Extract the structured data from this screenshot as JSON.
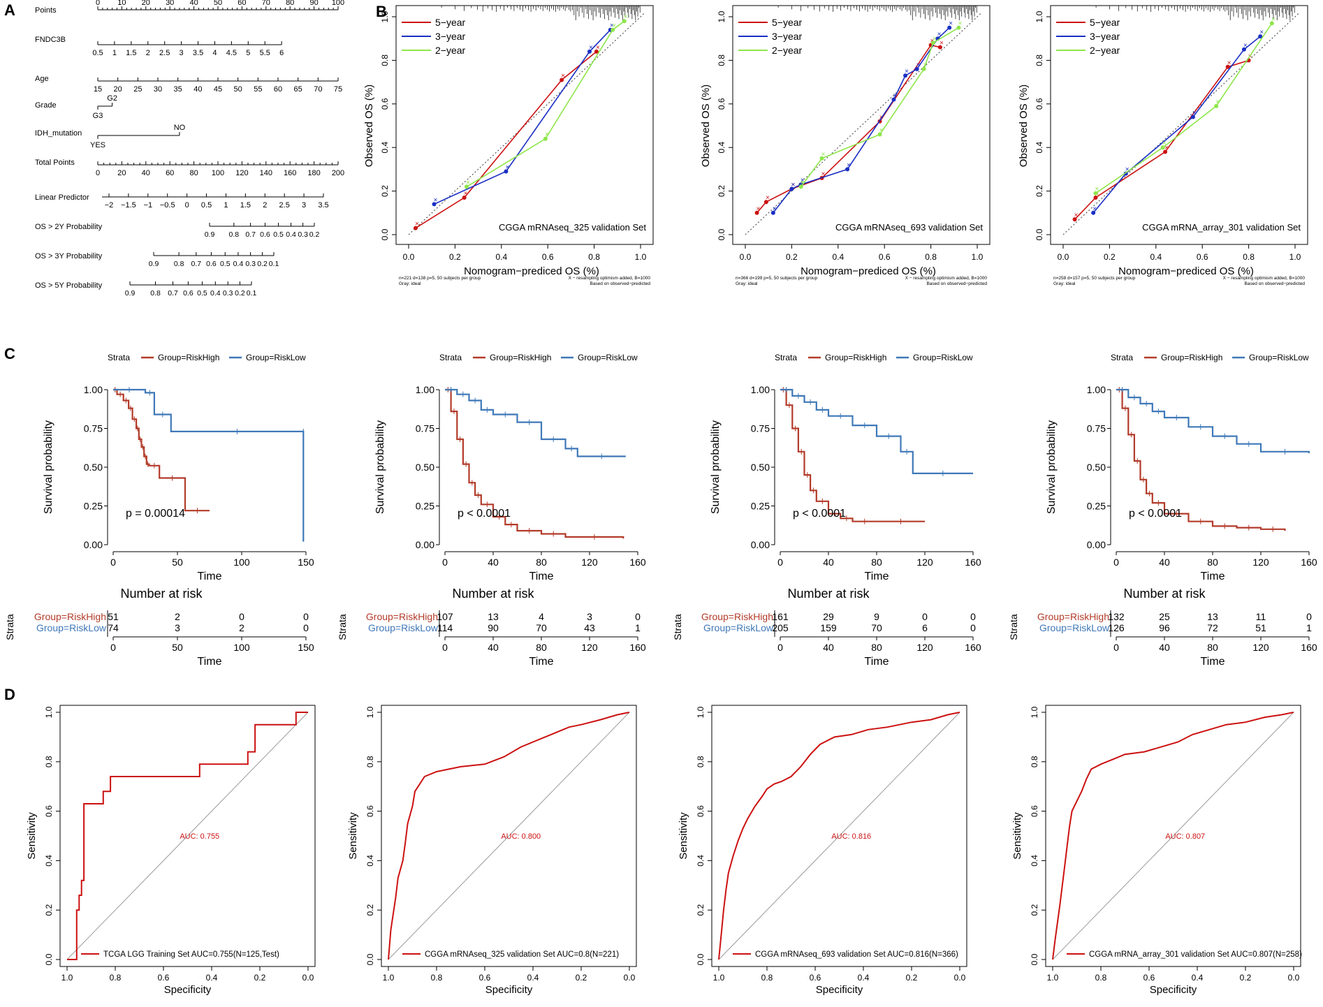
{
  "colors": {
    "red": "#cc1111",
    "blue": "#1a2fc4",
    "green": "#8ee64a",
    "riskHigh": "#b33b2a",
    "riskLow": "#3f78b8",
    "roc": "#cc1111",
    "gray": "#9a9a9a"
  },
  "panels": {
    "A": "A",
    "B": "B",
    "C": "C",
    "D": "D"
  },
  "chart_data": [
    {
      "id": "nomogram",
      "type": "nomogram",
      "rows": [
        {
          "label": "Points",
          "ticks": [
            "0",
            "10",
            "20",
            "30",
            "40",
            "50",
            "60",
            "70",
            "80",
            "90",
            "100"
          ],
          "range": [
            0,
            100
          ]
        },
        {
          "label": "FNDC3B",
          "ticks": [
            "0.5",
            "1",
            "1.5",
            "2",
            "2.5",
            "3",
            "3.5",
            "4",
            "4.5",
            "5",
            "5.5",
            "6"
          ],
          "points": [
            0,
            76.5
          ]
        },
        {
          "label": "Age",
          "ticks": [
            "15",
            "20",
            "25",
            "30",
            "35",
            "40",
            "45",
            "50",
            "55",
            "60",
            "65",
            "70",
            "75"
          ],
          "points": [
            0,
            100
          ]
        },
        {
          "label": "Grade",
          "levels": [
            "G2",
            "G3"
          ],
          "points": [
            6,
            0
          ]
        },
        {
          "label": "IDH_mutation",
          "levels": [
            "NO",
            "YES"
          ],
          "points": [
            34,
            0
          ]
        },
        {
          "label": "Total Points",
          "ticks": [
            "0",
            "20",
            "40",
            "60",
            "80",
            "100",
            "120",
            "140",
            "160",
            "180",
            "200"
          ],
          "range": [
            0,
            200
          ]
        },
        {
          "label": "Linear Predictor",
          "ticks": [
            "−2",
            "−1.5",
            "−1",
            "−0.5",
            "0",
            "0.5",
            "1",
            "1.5",
            "2",
            "2.5",
            "3",
            "3.5"
          ],
          "range": [
            -2,
            3.5
          ]
        },
        {
          "label": "OS > 2Y Probability",
          "ticks": [
            "0.9",
            "0.8",
            "0.7",
            "0.6",
            "0.5",
            "0.4",
            "0.3",
            "0.2"
          ]
        },
        {
          "label": "OS > 3Y Probability",
          "ticks": [
            "0.9",
            "0.8",
            "0.7",
            "0.6",
            "0.5",
            "0.4",
            "0.3",
            "0.2",
            "0.1"
          ]
        },
        {
          "label": "OS > 5Y Probability",
          "ticks": [
            "0.9",
            "0.8",
            "0.7",
            "0.6",
            "0.5",
            "0.4",
            "0.3",
            "0.2",
            "0.1"
          ]
        }
      ]
    },
    {
      "id": "calib1",
      "type": "line",
      "title": "CGGA mRNAseq_325 validation Set",
      "xlabel": "Nomogram−prediced OS (%)",
      "ylabel": "Observed OS (%)",
      "xlim": [
        0,
        1
      ],
      "ylim": [
        0,
        1
      ],
      "ticks": [
        "0.0",
        "0.2",
        "0.4",
        "0.6",
        "0.8",
        "1.0"
      ],
      "legend": [
        "5−year",
        "3−year",
        "2−year"
      ],
      "note_left": [
        "n=221 d=138 p=5, 50 subjects per group",
        "Gray: ideal"
      ],
      "note_right": [
        "X − resampling optimism added, B=1000",
        "Based on observed−predicted"
      ],
      "series": [
        {
          "name": "5-year",
          "x": [
            0.03,
            0.24,
            0.66,
            0.81
          ],
          "y": [
            0.03,
            0.17,
            0.71,
            0.84
          ]
        },
        {
          "name": "3-year",
          "x": [
            0.11,
            0.42,
            0.78,
            0.87
          ],
          "y": [
            0.14,
            0.29,
            0.84,
            0.94
          ]
        },
        {
          "name": "2-year",
          "x": [
            0.25,
            0.59,
            0.88,
            0.93
          ],
          "y": [
            0.22,
            0.44,
            0.94,
            0.98
          ]
        }
      ]
    },
    {
      "id": "calib2",
      "type": "line",
      "title": "CGGA mRNAseq_693 validation Set",
      "xlabel": "Nomogram−prediced OS (%)",
      "ylabel": "Observed OS (%)",
      "xlim": [
        0,
        1
      ],
      "ylim": [
        0,
        1
      ],
      "ticks": [
        "0.0",
        "0.2",
        "0.4",
        "0.6",
        "0.8",
        "1.0"
      ],
      "legend": [
        "5−year",
        "3−year",
        "2−year"
      ],
      "note_left": [
        "n=366 d=199 p=5, 50 subjects per group",
        "Gray: ideal"
      ],
      "note_right": [
        "X − resampling optimism added, B=1000",
        "Based on observed−predicted"
      ],
      "series": [
        {
          "name": "5-year",
          "x": [
            0.05,
            0.09,
            0.2,
            0.33,
            0.58,
            0.8,
            0.84
          ],
          "y": [
            0.1,
            0.15,
            0.21,
            0.26,
            0.52,
            0.87,
            0.86
          ]
        },
        {
          "name": "3-year",
          "x": [
            0.12,
            0.2,
            0.24,
            0.44,
            0.64,
            0.69,
            0.74,
            0.83,
            0.88
          ],
          "y": [
            0.1,
            0.21,
            0.23,
            0.3,
            0.62,
            0.73,
            0.76,
            0.9,
            0.95
          ]
        },
        {
          "name": "2-year",
          "x": [
            0.24,
            0.33,
            0.58,
            0.77,
            0.81,
            0.92
          ],
          "y": [
            0.22,
            0.35,
            0.46,
            0.76,
            0.88,
            0.95
          ]
        }
      ]
    },
    {
      "id": "calib3",
      "type": "line",
      "title": "CGGA mRNA_array_301 validation Set",
      "xlabel": "Nomogram−prediced OS (%)",
      "ylabel": "Observed OS (%)",
      "xlim": [
        0,
        1
      ],
      "ylim": [
        0,
        1
      ],
      "ticks": [
        "0.0",
        "0.2",
        "0.4",
        "0.6",
        "0.8",
        "1.0"
      ],
      "legend": [
        "5−year",
        "3−year",
        "2−year"
      ],
      "note_left": [
        "n=258 d=157 p=5, 50 subjects per group",
        "Gray: ideal"
      ],
      "note_right": [
        "X − resampling optimism added, B=1000",
        "Based on observed−predicted"
      ],
      "series": [
        {
          "name": "5-year",
          "x": [
            0.05,
            0.14,
            0.44,
            0.71,
            0.8
          ],
          "y": [
            0.07,
            0.17,
            0.38,
            0.77,
            0.8
          ]
        },
        {
          "name": "3-year",
          "x": [
            0.13,
            0.27,
            0.56,
            0.78,
            0.85
          ],
          "y": [
            0.1,
            0.28,
            0.54,
            0.85,
            0.91
          ]
        },
        {
          "name": "2-year",
          "x": [
            0.14,
            0.43,
            0.66,
            0.9
          ],
          "y": [
            0.19,
            0.4,
            0.59,
            0.97
          ]
        }
      ]
    },
    {
      "id": "km1",
      "type": "line",
      "strata_title": "Strata",
      "strata_labels": [
        "Group=RiskHigh",
        "Group=RiskLow"
      ],
      "xlabel": "Time",
      "ylabel": "Survival probability",
      "pvalue": "p = 0.00014",
      "xmax": 150,
      "xticks": [
        "0",
        "50",
        "100",
        "150"
      ],
      "yticks": [
        "0.00",
        "0.25",
        "0.50",
        "0.75",
        "1.00"
      ],
      "risk_title": "Number at risk",
      "risk_ylabel": "Strata",
      "risk_high": [
        "51",
        "2",
        "0",
        "0"
      ],
      "risk_low": [
        "74",
        "3",
        "2",
        "0"
      ],
      "series": [
        {
          "name": "RiskHigh",
          "t": [
            0,
            3,
            8,
            12,
            15,
            18,
            20,
            22,
            24,
            26,
            28,
            36,
            56,
            75
          ],
          "s": [
            1.0,
            0.97,
            0.93,
            0.88,
            0.81,
            0.75,
            0.68,
            0.63,
            0.57,
            0.52,
            0.51,
            0.43,
            0.22,
            0.22
          ]
        },
        {
          "name": "RiskLow",
          "t": [
            0,
            25,
            32,
            45,
            148,
            148
          ],
          "s": [
            1.0,
            0.98,
            0.84,
            0.73,
            0.73,
            0.02
          ]
        }
      ]
    },
    {
      "id": "km2",
      "type": "line",
      "strata_title": "Strata",
      "strata_labels": [
        "Group=RiskHigh",
        "Group=RiskLow"
      ],
      "xlabel": "Time",
      "ylabel": "Survival probability",
      "pvalue": "p < 0.0001",
      "xmax": 160,
      "xticks": [
        "0",
        "40",
        "80",
        "120",
        "160"
      ],
      "yticks": [
        "0.00",
        "0.25",
        "0.50",
        "0.75",
        "1.00"
      ],
      "risk_title": "Number at risk",
      "risk_ylabel": "Strata",
      "risk_high": [
        "107",
        "13",
        "4",
        "3",
        "0"
      ],
      "risk_low": [
        "114",
        "90",
        "70",
        "43",
        "1"
      ],
      "series": [
        {
          "name": "RiskHigh",
          "t": [
            0,
            5,
            10,
            15,
            20,
            25,
            30,
            40,
            50,
            60,
            80,
            100,
            148
          ],
          "s": [
            1.0,
            0.86,
            0.68,
            0.52,
            0.4,
            0.32,
            0.26,
            0.18,
            0.13,
            0.09,
            0.07,
            0.05,
            0.04
          ]
        },
        {
          "name": "RiskLow",
          "t": [
            0,
            10,
            20,
            30,
            40,
            60,
            80,
            100,
            110,
            150
          ],
          "s": [
            1.0,
            0.97,
            0.93,
            0.87,
            0.84,
            0.79,
            0.68,
            0.62,
            0.57,
            0.57
          ]
        }
      ]
    },
    {
      "id": "km3",
      "type": "line",
      "strata_title": "Strata",
      "strata_labels": [
        "Group=RiskHigh",
        "Group=RiskLow"
      ],
      "xlabel": "Time",
      "ylabel": "Survival probability",
      "pvalue": "p < 0.0001",
      "xmax": 160,
      "xticks": [
        "0",
        "40",
        "80",
        "120",
        "160"
      ],
      "yticks": [
        "0.00",
        "0.25",
        "0.50",
        "0.75",
        "1.00"
      ],
      "risk_title": "Number at risk",
      "risk_ylabel": "Strata",
      "risk_high": [
        "161",
        "29",
        "9",
        "0",
        "0"
      ],
      "risk_low": [
        "205",
        "159",
        "70",
        "6",
        "0"
      ],
      "series": [
        {
          "name": "RiskHigh",
          "t": [
            0,
            5,
            10,
            15,
            20,
            25,
            30,
            40,
            50,
            60,
            80,
            120
          ],
          "s": [
            1.0,
            0.9,
            0.75,
            0.6,
            0.45,
            0.35,
            0.28,
            0.2,
            0.17,
            0.15,
            0.15,
            0.15
          ]
        },
        {
          "name": "RiskLow",
          "t": [
            0,
            10,
            20,
            30,
            40,
            60,
            80,
            100,
            110,
            160
          ],
          "s": [
            1.0,
            0.96,
            0.92,
            0.87,
            0.83,
            0.77,
            0.7,
            0.6,
            0.46,
            0.46
          ]
        }
      ]
    },
    {
      "id": "km4",
      "type": "line",
      "strata_title": "Strata",
      "strata_labels": [
        "Group=RiskHigh",
        "Group=RiskLow"
      ],
      "xlabel": "Time",
      "ylabel": "Survival probability",
      "pvalue": "p < 0.0001",
      "xmax": 160,
      "xticks": [
        "0",
        "40",
        "80",
        "120",
        "160"
      ],
      "yticks": [
        "0.00",
        "0.25",
        "0.50",
        "0.75",
        "1.00"
      ],
      "risk_title": "Number at risk",
      "risk_ylabel": "Strata",
      "risk_high": [
        "132",
        "25",
        "13",
        "11",
        "0"
      ],
      "risk_low": [
        "126",
        "96",
        "72",
        "51",
        "1"
      ],
      "series": [
        {
          "name": "RiskHigh",
          "t": [
            0,
            5,
            10,
            15,
            20,
            25,
            30,
            40,
            60,
            80,
            100,
            120,
            140
          ],
          "s": [
            1.0,
            0.88,
            0.71,
            0.54,
            0.42,
            0.33,
            0.27,
            0.2,
            0.15,
            0.12,
            0.11,
            0.1,
            0.09
          ]
        },
        {
          "name": "RiskLow",
          "t": [
            0,
            10,
            20,
            30,
            40,
            60,
            80,
            100,
            120,
            160
          ],
          "s": [
            1.0,
            0.95,
            0.91,
            0.86,
            0.82,
            0.76,
            0.7,
            0.65,
            0.6,
            0.59
          ]
        }
      ]
    },
    {
      "id": "roc1",
      "type": "line",
      "auc_label": "AUC: 0.755",
      "legend": "TCGA LGG Training Set AUC=0.755(N=125,Test)",
      "xlabel": "Specificity",
      "ylabel": "Sensitivity",
      "xticks": [
        "1.0",
        "0.8",
        "0.6",
        "0.4",
        "0.2",
        "0.0"
      ],
      "yticks": [
        "0.0",
        "0.2",
        "0.4",
        "0.6",
        "0.8",
        "1.0"
      ],
      "specificity": [
        1.0,
        0.96,
        0.96,
        0.95,
        0.95,
        0.94,
        0.94,
        0.93,
        0.93,
        0.85,
        0.85,
        0.82,
        0.82,
        0.45,
        0.45,
        0.25,
        0.25,
        0.22,
        0.22,
        0.05,
        0.05,
        0.0
      ],
      "sensitivity": [
        0.0,
        0.0,
        0.2,
        0.2,
        0.26,
        0.26,
        0.32,
        0.32,
        0.63,
        0.63,
        0.68,
        0.68,
        0.74,
        0.74,
        0.79,
        0.79,
        0.84,
        0.84,
        0.95,
        0.95,
        1.0,
        1.0
      ]
    },
    {
      "id": "roc2",
      "type": "line",
      "auc_label": "AUC: 0.800",
      "legend": "CGGA mRNAseq_325 validation Set AUC=0.8(N=221)",
      "xlabel": "Specificity",
      "ylabel": "Sensitivity",
      "xticks": [
        "1.0",
        "0.8",
        "0.6",
        "0.4",
        "0.2",
        "0.0"
      ],
      "yticks": [
        "0.0",
        "0.2",
        "0.4",
        "0.6",
        "0.8",
        "1.0"
      ],
      "specificity": [
        1.0,
        0.99,
        0.97,
        0.96,
        0.94,
        0.93,
        0.92,
        0.9,
        0.89,
        0.87,
        0.85,
        0.8,
        0.7,
        0.6,
        0.52,
        0.45,
        0.4,
        0.35,
        0.3,
        0.25,
        0.2,
        0.12,
        0.05,
        0.0
      ],
      "sensitivity": [
        0.0,
        0.12,
        0.25,
        0.33,
        0.4,
        0.47,
        0.55,
        0.62,
        0.68,
        0.71,
        0.74,
        0.76,
        0.78,
        0.79,
        0.82,
        0.86,
        0.88,
        0.9,
        0.92,
        0.94,
        0.95,
        0.97,
        0.99,
        1.0
      ]
    },
    {
      "id": "roc3",
      "type": "line",
      "auc_label": "AUC: 0.816",
      "legend": "CGGA mRNAseq_693 validation Set AUC=0.816(N=366)",
      "xlabel": "Specificity",
      "ylabel": "Sensitivity",
      "xticks": [
        "1.0",
        "0.8",
        "0.6",
        "0.4",
        "0.2",
        "0.0"
      ],
      "yticks": [
        "0.0",
        "0.2",
        "0.4",
        "0.6",
        "0.8",
        "1.0"
      ],
      "specificity": [
        1.0,
        0.99,
        0.98,
        0.97,
        0.96,
        0.94,
        0.92,
        0.9,
        0.88,
        0.85,
        0.82,
        0.8,
        0.77,
        0.74,
        0.7,
        0.66,
        0.62,
        0.58,
        0.52,
        0.45,
        0.38,
        0.3,
        0.2,
        0.12,
        0.05,
        0.0
      ],
      "sensitivity": [
        0.0,
        0.1,
        0.2,
        0.28,
        0.35,
        0.42,
        0.48,
        0.53,
        0.57,
        0.62,
        0.66,
        0.69,
        0.71,
        0.72,
        0.74,
        0.78,
        0.83,
        0.87,
        0.9,
        0.91,
        0.93,
        0.94,
        0.96,
        0.97,
        0.99,
        1.0
      ]
    },
    {
      "id": "roc4",
      "type": "line",
      "auc_label": "AUC: 0.807",
      "legend": "CGGA mRNA_array_301 validation Set AUC=0.807(N=258)",
      "xlabel": "Specificity",
      "ylabel": "Sensitivity",
      "xticks": [
        "1.0",
        "0.8",
        "0.6",
        "0.4",
        "0.2",
        "0.0"
      ],
      "yticks": [
        "0.0",
        "0.2",
        "0.4",
        "0.6",
        "0.8",
        "1.0"
      ],
      "specificity": [
        1.0,
        0.99,
        0.98,
        0.97,
        0.96,
        0.95,
        0.94,
        0.93,
        0.92,
        0.9,
        0.88,
        0.86,
        0.84,
        0.8,
        0.75,
        0.7,
        0.62,
        0.55,
        0.48,
        0.42,
        0.35,
        0.28,
        0.2,
        0.12,
        0.05,
        0.0
      ],
      "sensitivity": [
        0.0,
        0.08,
        0.15,
        0.22,
        0.3,
        0.38,
        0.46,
        0.54,
        0.6,
        0.64,
        0.68,
        0.73,
        0.77,
        0.79,
        0.81,
        0.83,
        0.84,
        0.86,
        0.88,
        0.91,
        0.93,
        0.95,
        0.96,
        0.98,
        0.99,
        1.0
      ]
    }
  ]
}
